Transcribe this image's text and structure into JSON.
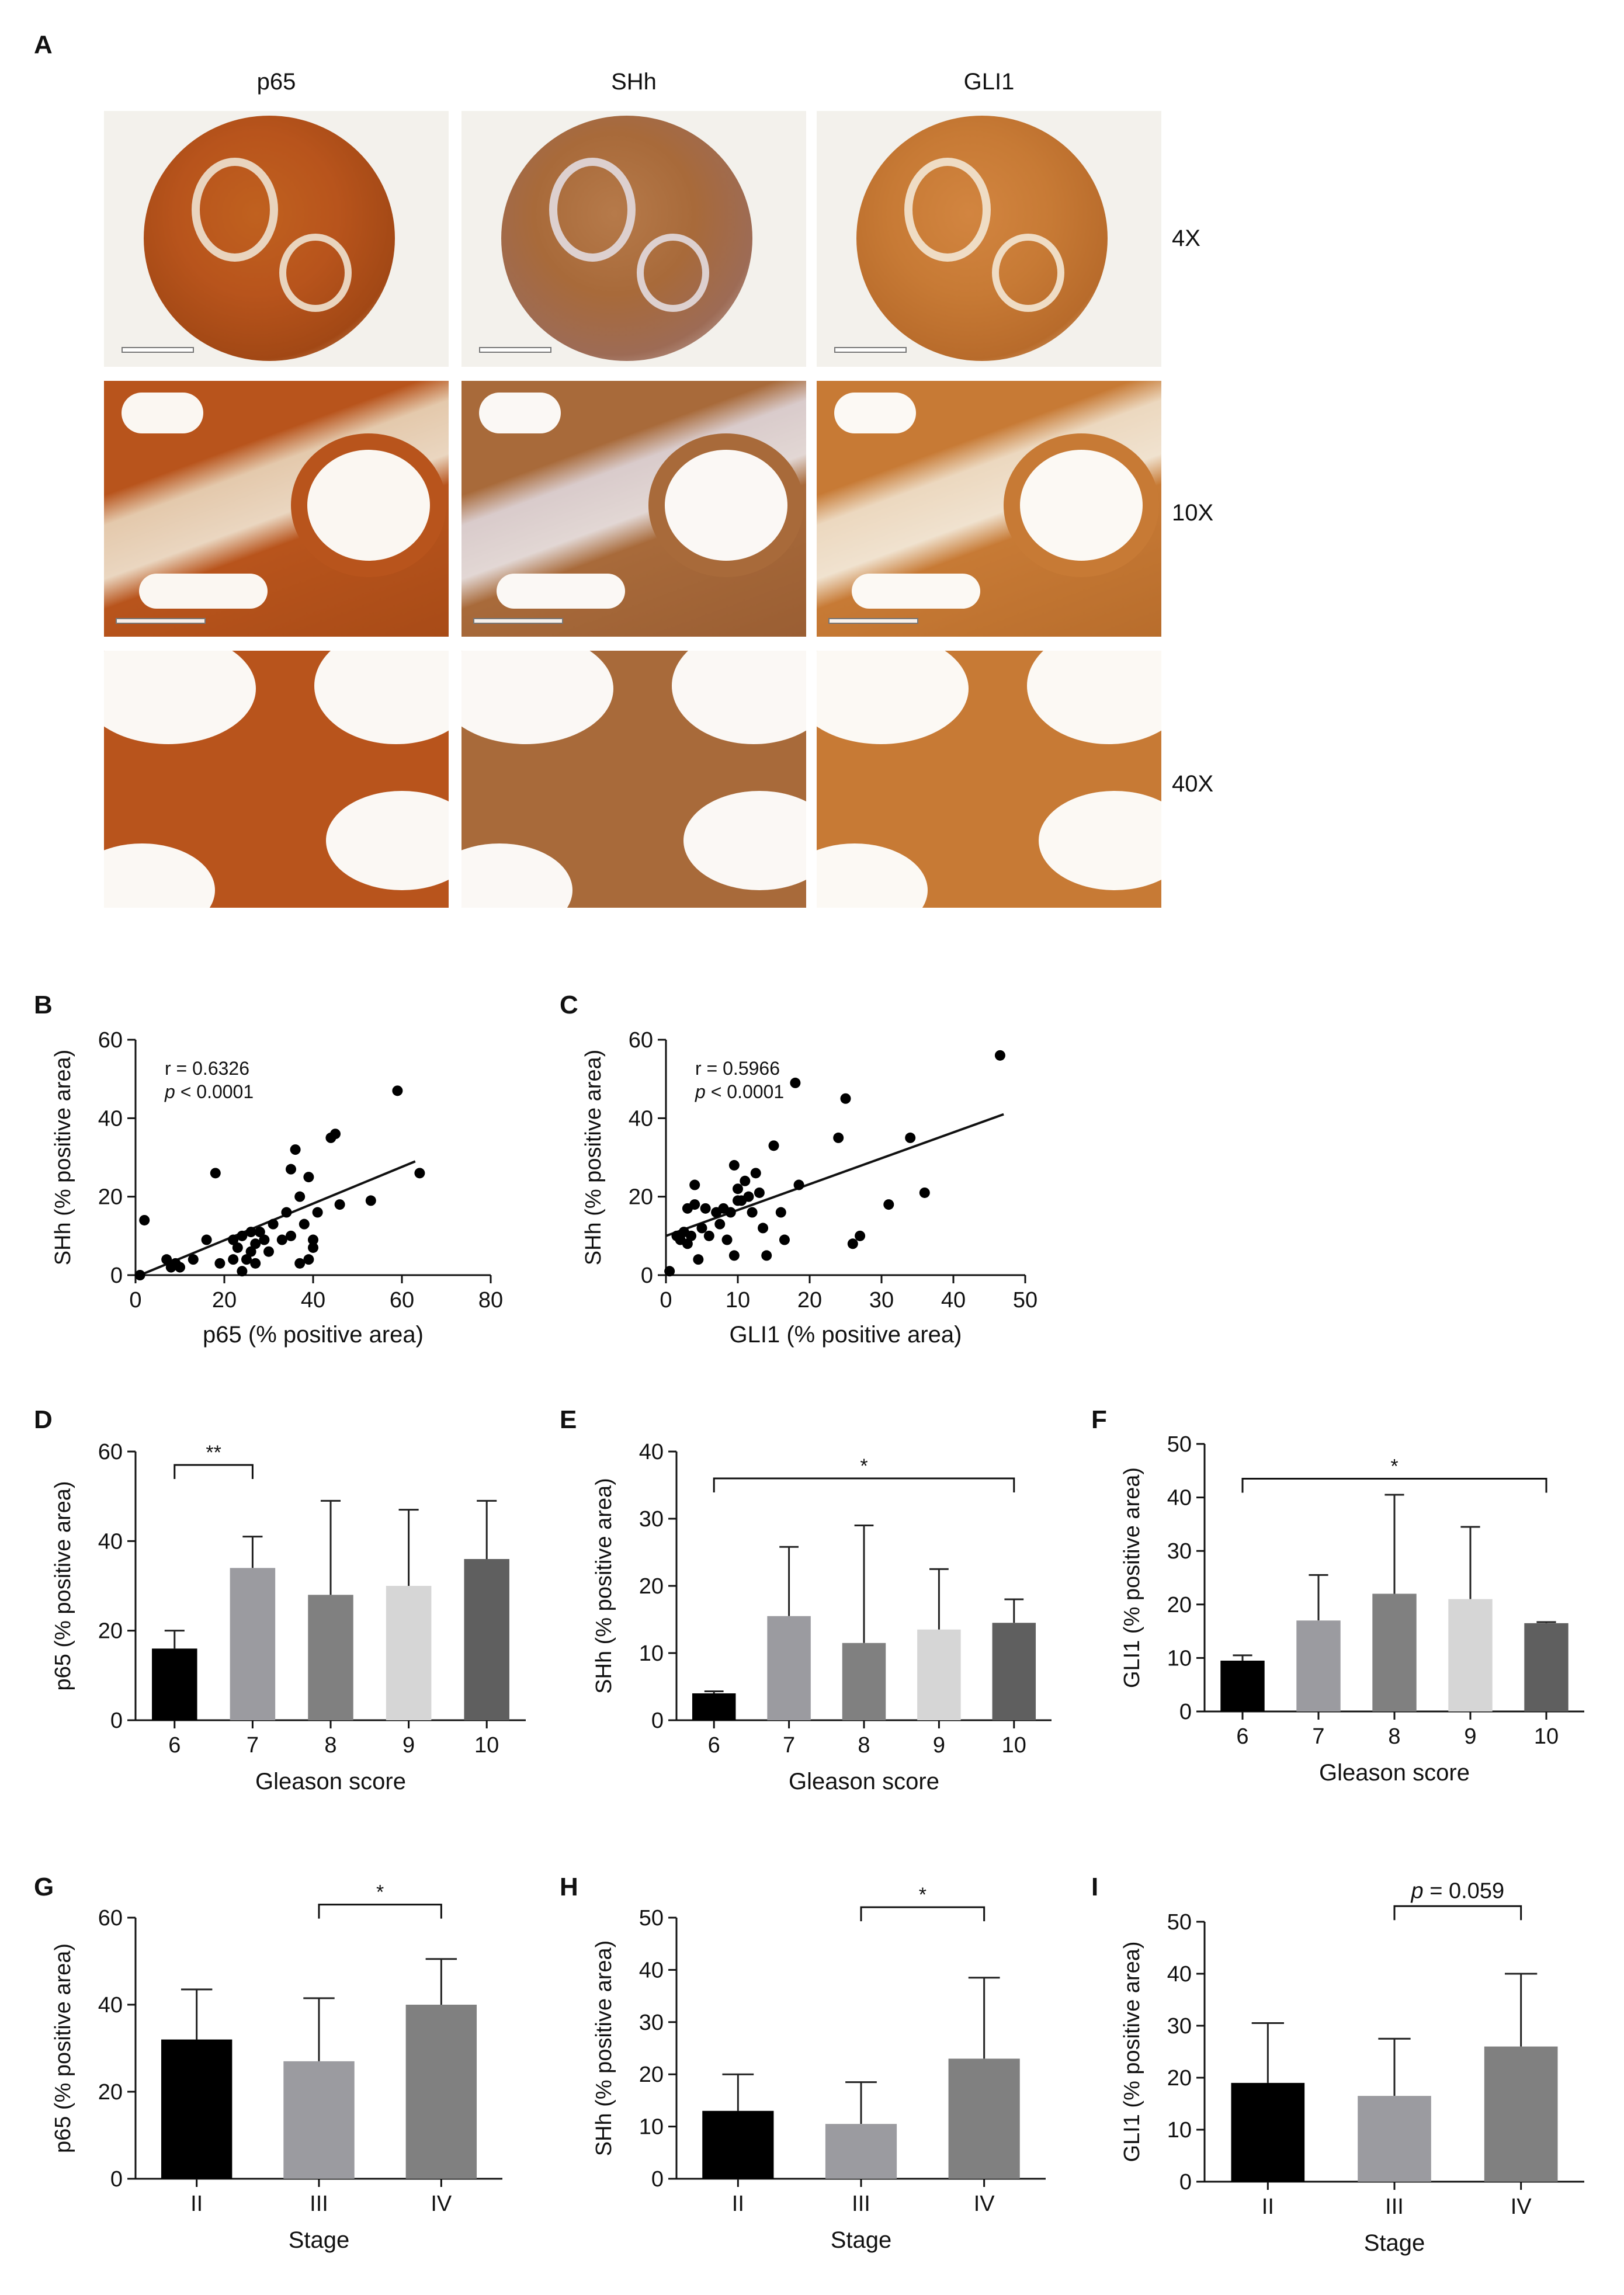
{
  "panel_a": {
    "letter": "A",
    "columns": [
      "p65",
      "SHh",
      "GLI1"
    ],
    "magnifications": [
      "4X",
      "10X",
      "40X"
    ],
    "stain_colors": {
      "p65": "#b8541c",
      "SHh": "#a86a3a",
      "GLI1": "#c77a35"
    }
  },
  "chart_data": [
    {
      "id": "B",
      "letter": "B",
      "type": "scatter",
      "xlabel": "p65 (% positive area)",
      "ylabel": "SHh (% positive area)",
      "xlim": [
        0,
        80
      ],
      "ylim": [
        0,
        60
      ],
      "xticks": [
        0,
        20,
        40,
        60,
        80
      ],
      "yticks": [
        0,
        20,
        40,
        60
      ],
      "annotation": {
        "r": "r = 0.6326",
        "p_sym": "p",
        "p_rest": " < 0.0001"
      },
      "fit": [
        [
          1,
          0
        ],
        [
          63,
          29
        ]
      ],
      "points": [
        [
          1,
          0
        ],
        [
          2,
          14
        ],
        [
          7,
          4
        ],
        [
          8,
          2
        ],
        [
          9,
          3
        ],
        [
          10,
          2
        ],
        [
          13,
          4
        ],
        [
          16,
          9
        ],
        [
          18,
          26
        ],
        [
          19,
          3
        ],
        [
          22,
          9
        ],
        [
          22,
          4
        ],
        [
          23,
          7
        ],
        [
          24,
          1
        ],
        [
          24,
          10
        ],
        [
          25,
          4
        ],
        [
          26,
          6
        ],
        [
          26,
          11
        ],
        [
          27,
          3
        ],
        [
          27,
          8
        ],
        [
          28,
          11
        ],
        [
          29,
          9
        ],
        [
          30,
          6
        ],
        [
          31,
          13
        ],
        [
          33,
          9
        ],
        [
          34,
          16
        ],
        [
          35,
          27
        ],
        [
          35,
          10
        ],
        [
          36,
          32
        ],
        [
          37,
          3
        ],
        [
          37,
          20
        ],
        [
          38,
          13
        ],
        [
          39,
          4
        ],
        [
          39,
          25
        ],
        [
          40,
          7
        ],
        [
          40,
          9
        ],
        [
          41,
          16
        ],
        [
          44,
          35
        ],
        [
          45,
          36
        ],
        [
          46,
          18
        ],
        [
          53,
          19
        ],
        [
          59,
          47
        ],
        [
          64,
          26
        ]
      ]
    },
    {
      "id": "C",
      "letter": "C",
      "type": "scatter",
      "xlabel": "GLI1 (% positive area)",
      "ylabel": "SHh (% positive area)",
      "xlim": [
        0,
        50
      ],
      "ylim": [
        0,
        60
      ],
      "xticks": [
        0,
        10,
        20,
        30,
        40,
        50
      ],
      "yticks": [
        0,
        20,
        40,
        60
      ],
      "annotation": {
        "r": "r = 0.5966",
        "p_sym": "p",
        "p_rest": " < 0.0001"
      },
      "fit": [
        [
          0,
          10
        ],
        [
          47,
          41
        ]
      ],
      "points": [
        [
          0.5,
          1
        ],
        [
          1.5,
          10
        ],
        [
          2,
          9
        ],
        [
          2.5,
          11
        ],
        [
          3,
          17
        ],
        [
          3,
          8
        ],
        [
          3.5,
          10
        ],
        [
          4,
          23
        ],
        [
          4,
          18
        ],
        [
          4.5,
          4
        ],
        [
          5,
          12
        ],
        [
          5.5,
          17
        ],
        [
          6,
          10
        ],
        [
          7,
          16
        ],
        [
          7.5,
          13
        ],
        [
          8,
          17
        ],
        [
          8.5,
          9
        ],
        [
          9,
          16
        ],
        [
          9.5,
          28
        ],
        [
          9.5,
          5
        ],
        [
          10,
          22
        ],
        [
          10,
          19
        ],
        [
          10.5,
          19
        ],
        [
          11,
          24
        ],
        [
          11.5,
          20
        ],
        [
          12,
          16
        ],
        [
          12.5,
          26
        ],
        [
          13,
          21
        ],
        [
          13.5,
          12
        ],
        [
          14,
          5
        ],
        [
          15,
          33
        ],
        [
          16,
          16
        ],
        [
          16.5,
          9
        ],
        [
          18,
          49
        ],
        [
          18.5,
          23
        ],
        [
          24,
          35
        ],
        [
          25,
          45
        ],
        [
          26,
          8
        ],
        [
          27,
          10
        ],
        [
          31,
          18
        ],
        [
          34,
          35
        ],
        [
          36,
          21
        ],
        [
          46.5,
          56
        ]
      ]
    },
    {
      "id": "D",
      "letter": "D",
      "type": "bar",
      "categories": [
        "6",
        "7",
        "8",
        "9",
        "10"
      ],
      "values": [
        16,
        34,
        28,
        30,
        36
      ],
      "errors": [
        20,
        41,
        49,
        47,
        49
      ],
      "xlabel": "Gleason score",
      "ylabel": "p65 (% positive area)",
      "ylim": [
        0,
        60
      ],
      "yticks": [
        0,
        20,
        40,
        60
      ],
      "bracket": {
        "from": 0,
        "to": 1,
        "level": 57,
        "label": "**"
      }
    },
    {
      "id": "E",
      "letter": "E",
      "type": "bar",
      "categories": [
        "6",
        "7",
        "8",
        "9",
        "10"
      ],
      "values": [
        4,
        15.5,
        11.5,
        13.5,
        14.5
      ],
      "errors": [
        4.3,
        25.8,
        29,
        22.5,
        18
      ],
      "xlabel": "Gleason score",
      "ylabel": "SHh (% positive area)",
      "ylim": [
        0,
        40
      ],
      "yticks": [
        0,
        10,
        20,
        30,
        40
      ],
      "bracket": {
        "from": 0,
        "to": 4,
        "level": 36,
        "label": "*"
      }
    },
    {
      "id": "F",
      "letter": "F",
      "type": "bar",
      "categories": [
        "6",
        "7",
        "8",
        "9",
        "10"
      ],
      "values": [
        9.5,
        17,
        22,
        21,
        16.5
      ],
      "errors": [
        10.5,
        25.5,
        40.5,
        34.5,
        16.7
      ],
      "xlabel": "Gleason score",
      "ylabel": "GLI1 (% positive area)",
      "ylim": [
        0,
        50
      ],
      "yticks": [
        0,
        10,
        20,
        30,
        40,
        50
      ],
      "bracket": {
        "from": 0,
        "to": 4,
        "level": 43.5,
        "label": "*"
      }
    },
    {
      "id": "G",
      "letter": "G",
      "type": "bar",
      "categories": [
        "II",
        "III",
        "IV"
      ],
      "values": [
        32,
        27,
        40
      ],
      "errors": [
        43.5,
        41.5,
        50.5
      ],
      "xlabel": "Stage",
      "ylabel": "p65 (% positive area)",
      "ylim": [
        0,
        60
      ],
      "yticks": [
        0,
        20,
        40,
        60
      ],
      "bracket": {
        "from": 1,
        "to": 2,
        "level": 63,
        "label": "*"
      }
    },
    {
      "id": "H",
      "letter": "H",
      "type": "bar",
      "categories": [
        "II",
        "III",
        "IV"
      ],
      "values": [
        13,
        10.5,
        23
      ],
      "errors": [
        20,
        18.5,
        38.5
      ],
      "xlabel": "Stage",
      "ylabel": "SHh (% positive area)",
      "ylim": [
        0,
        50
      ],
      "yticks": [
        0,
        10,
        20,
        30,
        40,
        50
      ],
      "bracket": {
        "from": 1,
        "to": 2,
        "level": 52,
        "label": "*"
      }
    },
    {
      "id": "I",
      "letter": "I",
      "type": "bar",
      "categories": [
        "II",
        "III",
        "IV"
      ],
      "values": [
        19,
        16.5,
        26
      ],
      "errors": [
        30.5,
        27.5,
        40
      ],
      "xlabel": "Stage",
      "ylabel": "GLI1 (% positive area)",
      "ylim": [
        0,
        50
      ],
      "yticks": [
        0,
        10,
        20,
        30,
        40,
        50
      ],
      "bracket": {
        "from": 1,
        "to": 2,
        "level": 53,
        "label": "= 0.059",
        "label_sym": "p"
      }
    }
  ]
}
